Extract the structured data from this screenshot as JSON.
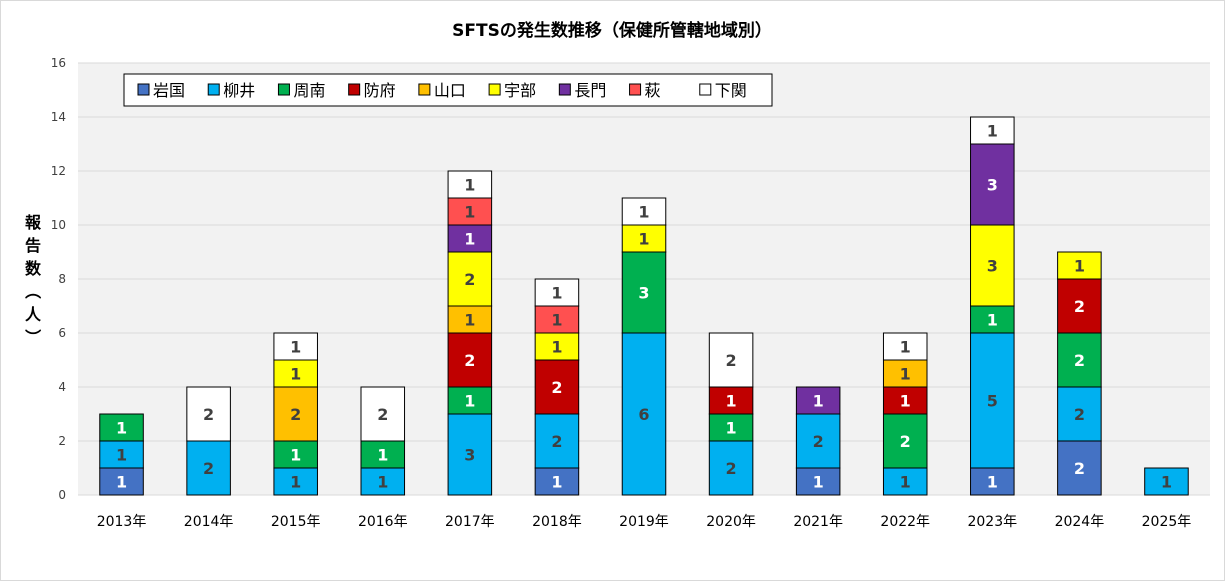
{
  "chart_data": {
    "type": "bar",
    "stacked": true,
    "title": "SFTSの発生数推移（保健所管轄地域別）",
    "ylabel": "報告数（人）",
    "xlabel": "",
    "ylim": [
      0,
      16
    ],
    "yticks": [
      0,
      2,
      4,
      6,
      8,
      10,
      12,
      14,
      16
    ],
    "grid": true,
    "legend_position": "top-left",
    "categories": [
      "2013年",
      "2014年",
      "2015年",
      "2016年",
      "2017年",
      "2018年",
      "2019年",
      "2020年",
      "2021年",
      "2022年",
      "2023年",
      "2024年",
      "2025年"
    ],
    "series": [
      {
        "name": "岩国",
        "color": "#4472c4",
        "label_color": "#ffffff",
        "values": [
          1,
          0,
          0,
          0,
          0,
          1,
          0,
          0,
          1,
          0,
          1,
          2,
          0
        ]
      },
      {
        "name": "柳井",
        "color": "#00b0f0",
        "label_color": "#404040",
        "values": [
          1,
          2,
          1,
          1,
          3,
          2,
          6,
          2,
          2,
          1,
          5,
          2,
          1
        ]
      },
      {
        "name": "周南",
        "color": "#00b050",
        "label_color": "#ffffff",
        "values": [
          1,
          0,
          1,
          1,
          1,
          0,
          3,
          1,
          0,
          2,
          1,
          2,
          0
        ]
      },
      {
        "name": "防府",
        "color": "#c00000",
        "label_color": "#ffffff",
        "values": [
          0,
          0,
          0,
          0,
          2,
          2,
          0,
          1,
          0,
          1,
          0,
          2,
          0
        ]
      },
      {
        "name": "山口",
        "color": "#ffc000",
        "label_color": "#404040",
        "values": [
          0,
          0,
          2,
          0,
          1,
          0,
          0,
          0,
          0,
          1,
          0,
          0,
          0
        ]
      },
      {
        "name": "宇部",
        "color": "#ffff00",
        "label_color": "#404040",
        "values": [
          0,
          0,
          1,
          0,
          2,
          1,
          1,
          0,
          0,
          0,
          3,
          1,
          0
        ]
      },
      {
        "name": "長門",
        "color": "#7030a0",
        "label_color": "#ffffff",
        "values": [
          0,
          0,
          0,
          0,
          1,
          0,
          0,
          0,
          1,
          0,
          3,
          0,
          0
        ]
      },
      {
        "name": "萩",
        "color": "#ff5050",
        "label_color": "#404040",
        "values": [
          0,
          0,
          0,
          0,
          1,
          1,
          0,
          0,
          0,
          0,
          0,
          0,
          0
        ]
      },
      {
        "name": "下関",
        "color": "#ffffff",
        "label_color": "#404040",
        "values": [
          0,
          2,
          1,
          2,
          1,
          1,
          1,
          2,
          0,
          1,
          1,
          0,
          0
        ]
      }
    ]
  }
}
